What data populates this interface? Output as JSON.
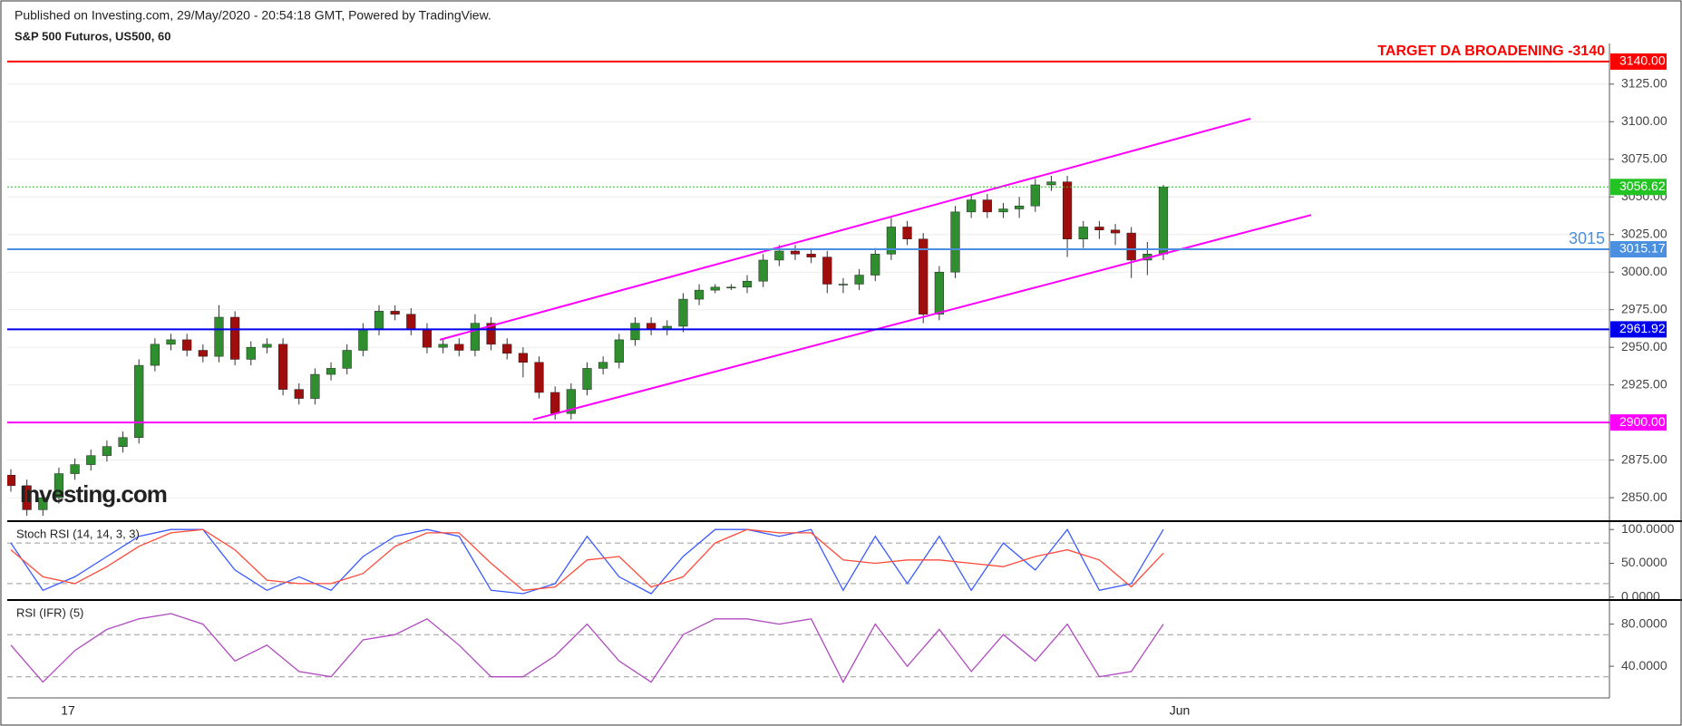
{
  "header": {
    "published": "Published on Investing.com, 29/May/2020 - 20:54:18 GMT, Powered by TradingView.",
    "symbol": "S&P 500 Futuros, US500, 60",
    "watermark": "Investing.com"
  },
  "chart_data": [
    {
      "type": "candlestick",
      "up_color": "#2f8f2f",
      "down_color": "#a00d0d",
      "open": [
        2865,
        2858,
        2842,
        2850,
        2866,
        2872,
        2878,
        2884,
        2890,
        2938,
        2952,
        2955,
        2948,
        2944,
        2970,
        2942,
        2950,
        2952,
        2922,
        2916,
        2932,
        2936,
        2948,
        2962,
        2974,
        2972,
        2962,
        2950,
        2952,
        2948,
        2966,
        2952,
        2946,
        2940,
        2920,
        2906,
        2922,
        2936,
        2940,
        2955,
        2966,
        2962,
        2964,
        2982,
        2988,
        2990,
        2990,
        2994,
        3008,
        3014,
        3012,
        3010,
        2992,
        2992,
        2998,
        3012,
        3030,
        3022,
        2972,
        3000,
        3040,
        3048,
        3040,
        3042,
        3044,
        3058,
        3060,
        3022,
        3030,
        3028,
        3026,
        3008,
        3012
      ],
      "high": [
        2869,
        2862,
        2854,
        2870,
        2876,
        2882,
        2888,
        2894,
        2942,
        2956,
        2959,
        2959,
        2952,
        2978,
        2974,
        2954,
        2956,
        2956,
        2926,
        2936,
        2940,
        2952,
        2966,
        2978,
        2978,
        2976,
        2966,
        2956,
        2956,
        2972,
        2970,
        2956,
        2950,
        2944,
        2924,
        2926,
        2940,
        2944,
        2959,
        2970,
        2970,
        2968,
        2986,
        2992,
        2992,
        2992,
        2998,
        3012,
        3018,
        3018,
        3016,
        3014,
        2996,
        3002,
        3016,
        3036,
        3034,
        3026,
        3004,
        3044,
        3052,
        3052,
        3046,
        3050,
        3062,
        3064,
        3064,
        3034,
        3034,
        3032,
        3030,
        3020,
        3058
      ],
      "low": [
        2854,
        2838,
        2838,
        2846,
        2862,
        2868,
        2874,
        2880,
        2886,
        2934,
        2948,
        2944,
        2940,
        2940,
        2938,
        2938,
        2946,
        2918,
        2912,
        2912,
        2928,
        2932,
        2944,
        2958,
        2968,
        2958,
        2946,
        2946,
        2944,
        2944,
        2948,
        2942,
        2930,
        2916,
        2902,
        2902,
        2918,
        2932,
        2936,
        2951,
        2958,
        2958,
        2960,
        2978,
        2986,
        2988,
        2986,
        2990,
        3004,
        3008,
        3006,
        2986,
        2986,
        2988,
        2994,
        3008,
        3018,
        2966,
        2968,
        2996,
        3036,
        3036,
        3036,
        3036,
        3040,
        3054,
        3010,
        3016,
        3022,
        3018,
        2996,
        2998,
        3008
      ],
      "close": [
        2858,
        2842,
        2850,
        2866,
        2872,
        2878,
        2884,
        2890,
        2938,
        2952,
        2955,
        2948,
        2944,
        2970,
        2942,
        2950,
        2952,
        2922,
        2916,
        2932,
        2936,
        2948,
        2962,
        2974,
        2972,
        2962,
        2950,
        2952,
        2948,
        2966,
        2952,
        2946,
        2940,
        2920,
        2906,
        2922,
        2936,
        2940,
        2955,
        2966,
        2962,
        2964,
        2982,
        2988,
        2990,
        2990,
        2994,
        3008,
        3014,
        3012,
        3010,
        2992,
        2992,
        2998,
        3012,
        3030,
        3022,
        2972,
        3000,
        3040,
        3048,
        3040,
        3042,
        3044,
        3058,
        3060,
        3022,
        3030,
        3028,
        3026,
        3008,
        3012,
        3056.62
      ],
      "ylim": [
        2835,
        3152
      ],
      "yticks": [
        {
          "value": 2850,
          "label": "2850.00"
        },
        {
          "value": 2875,
          "label": "2875.00"
        },
        {
          "value": 2900,
          "label": "2900.00"
        },
        {
          "value": 2925,
          "label": "2925.00"
        },
        {
          "value": 2950,
          "label": "2950.00"
        },
        {
          "value": 2975,
          "label": "2975.00"
        },
        {
          "value": 3000,
          "label": "3000.00"
        },
        {
          "value": 3025,
          "label": "3025.00"
        },
        {
          "value": 3050,
          "label": "3050.00"
        },
        {
          "value": 3075,
          "label": "3075.00"
        },
        {
          "value": 3100,
          "label": "3100.00"
        },
        {
          "value": 3125,
          "label": "3125.00"
        }
      ],
      "grid": true,
      "x_labels": [
        "17",
        "Jun"
      ],
      "levels": [
        {
          "value": 3140,
          "label": "3140.00",
          "color": "#ff0000",
          "style": "solid"
        },
        {
          "value": 3056.62,
          "label": "3056.62",
          "color": "#22c322",
          "style": "dotted"
        },
        {
          "value": 3015.17,
          "label": "3015.17",
          "color": "#4a8fe0",
          "style": "solid"
        },
        {
          "value": 2961.92,
          "label": "2961.92",
          "color": "#0000ee",
          "style": "solid"
        },
        {
          "value": 2900,
          "label": "2900.00",
          "color": "#ff00ff",
          "style": "solid"
        }
      ],
      "annotations": [
        {
          "text": "TARGET DA BROADENING -3140",
          "value": 3140,
          "color": "#ff0000"
        },
        {
          "text": "3015",
          "value": 3015.17,
          "color": "#4a8fe0"
        }
      ],
      "trendlines": [
        {
          "from": 2955,
          "to": 3102,
          "color": "#ff00ff"
        },
        {
          "from": 2902,
          "to": 3038,
          "color": "#ff00ff"
        }
      ]
    },
    {
      "type": "line",
      "title": "Stoch RSI (14, 14, 3, 3)",
      "series": [
        {
          "color": "#3b5bff",
          "values": [
            80,
            10,
            30,
            60,
            90,
            100,
            100,
            40,
            10,
            30,
            10,
            60,
            90,
            100,
            90,
            10,
            5,
            20,
            90,
            30,
            5,
            60,
            100,
            100,
            90,
            100,
            10,
            90,
            20,
            90,
            10,
            80,
            40,
            100,
            10,
            20,
            100
          ]
        },
        {
          "color": "#ff4a3a",
          "values": [
            70,
            30,
            20,
            45,
            75,
            95,
            100,
            70,
            25,
            20,
            20,
            35,
            75,
            95,
            95,
            50,
            10,
            15,
            55,
            60,
            15,
            30,
            80,
            100,
            95,
            95,
            55,
            50,
            55,
            55,
            50,
            45,
            60,
            70,
            55,
            15,
            65
          ]
        }
      ],
      "ylim": [
        -3,
        111
      ],
      "yticks": [
        {
          "value": 0,
          "label": "0.0000"
        },
        {
          "value": 50,
          "label": "50.0000"
        },
        {
          "value": 100,
          "label": "100.0000"
        }
      ],
      "bands": [
        20,
        80
      ]
    },
    {
      "type": "line",
      "title": "RSI (IFR) (5)",
      "series": [
        {
          "color": "#b04ac0",
          "values": [
            60,
            25,
            55,
            75,
            85,
            90,
            80,
            45,
            60,
            35,
            30,
            65,
            70,
            85,
            60,
            30,
            30,
            50,
            80,
            45,
            25,
            70,
            85,
            85,
            80,
            85,
            25,
            80,
            40,
            75,
            35,
            70,
            45,
            80,
            30,
            35,
            80
          ]
        }
      ],
      "ylim": [
        10,
        102
      ],
      "yticks": [
        {
          "value": 40,
          "label": "40.0000"
        },
        {
          "value": 80,
          "label": "80.0000"
        }
      ],
      "bands": [
        30,
        70
      ]
    }
  ]
}
